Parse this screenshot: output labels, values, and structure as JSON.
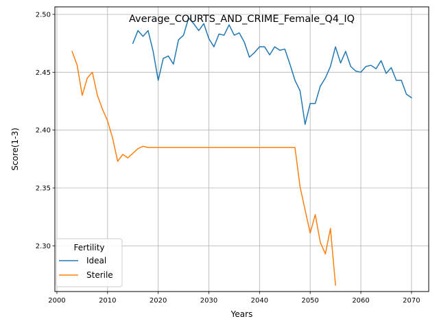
{
  "chart_data": {
    "type": "line",
    "title": "Average_COURTS_AND_CRIME_Female_Q4_IQ",
    "xlabel": "Years",
    "ylabel": "Score(1-3)",
    "xlim": [
      1999.6,
      2073.4
    ],
    "ylim": [
      2.2605,
      2.5065
    ],
    "xticks": [
      2000,
      2010,
      2020,
      2030,
      2040,
      2050,
      2060,
      2070
    ],
    "yticks": [
      2.3,
      2.35,
      2.4,
      2.45,
      2.5
    ],
    "ytick_labels": [
      "2.30",
      "2.35",
      "2.40",
      "2.45",
      "2.50"
    ],
    "grid": true,
    "legend": {
      "title": "Fertility",
      "location": "lower-left"
    },
    "series": [
      {
        "name": "Ideal",
        "color": "#1f77b4",
        "x": [
          2015,
          2016,
          2017,
          2018,
          2019,
          2020,
          2021,
          2022,
          2023,
          2024,
          2025,
          2026,
          2027,
          2028,
          2029,
          2030,
          2031,
          2032,
          2033,
          2034,
          2035,
          2036,
          2037,
          2038,
          2039,
          2040,
          2041,
          2042,
          2043,
          2044,
          2045,
          2046,
          2047,
          2048,
          2049,
          2050,
          2051,
          2052,
          2053,
          2054,
          2055,
          2056,
          2057,
          2058,
          2059,
          2060,
          2061,
          2062,
          2063,
          2064,
          2065,
          2066,
          2067,
          2068,
          2069,
          2070
        ],
        "y": [
          2.475,
          2.486,
          2.481,
          2.486,
          2.468,
          2.443,
          2.462,
          2.464,
          2.457,
          2.478,
          2.482,
          2.497,
          2.492,
          2.486,
          2.492,
          2.479,
          2.472,
          2.483,
          2.482,
          2.491,
          2.482,
          2.484,
          2.476,
          2.463,
          2.467,
          2.472,
          2.472,
          2.465,
          2.472,
          2.469,
          2.47,
          2.457,
          2.443,
          2.434,
          2.405,
          2.423,
          2.423,
          2.438,
          2.445,
          2.455,
          2.472,
          2.458,
          2.468,
          2.455,
          2.451,
          2.45,
          2.455,
          2.456,
          2.453,
          2.46,
          2.449,
          2.454,
          2.443,
          2.443,
          2.431,
          2.428
        ]
      },
      {
        "name": "Sterile",
        "color": "#ff7f0e",
        "x": [
          2003,
          2004,
          2005,
          2006,
          2007,
          2008,
          2009,
          2010,
          2011,
          2012,
          2013,
          2014,
          2015,
          2016,
          2017,
          2018,
          2019,
          2020,
          2021,
          2022,
          2023,
          2024,
          2025,
          2026,
          2027,
          2028,
          2029,
          2030,
          2031,
          2032,
          2033,
          2034,
          2035,
          2036,
          2037,
          2038,
          2039,
          2040,
          2041,
          2042,
          2043,
          2044,
          2045,
          2046,
          2047,
          2048,
          2049,
          2050,
          2051,
          2052,
          2053,
          2054,
          2055
        ],
        "y": [
          2.468,
          2.456,
          2.43,
          2.445,
          2.45,
          2.43,
          2.418,
          2.408,
          2.393,
          2.373,
          2.379,
          2.376,
          2.38,
          2.384,
          2.386,
          2.385,
          2.385,
          2.385,
          2.385,
          2.385,
          2.385,
          2.385,
          2.385,
          2.385,
          2.385,
          2.385,
          2.385,
          2.385,
          2.385,
          2.385,
          2.385,
          2.385,
          2.385,
          2.385,
          2.385,
          2.385,
          2.385,
          2.385,
          2.385,
          2.385,
          2.385,
          2.385,
          2.385,
          2.385,
          2.385,
          2.351,
          2.331,
          2.311,
          2.327,
          2.303,
          2.293,
          2.315,
          2.266
        ]
      }
    ]
  }
}
